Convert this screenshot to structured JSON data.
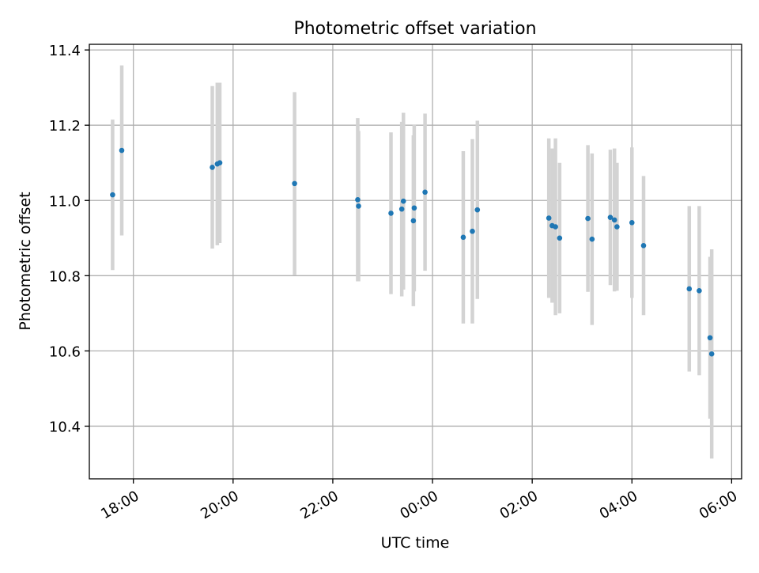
{
  "chart_data": {
    "type": "scatter",
    "title": "Photometric offset variation",
    "xlabel": "UTC time",
    "ylabel": "Photometric offset",
    "x_axis": {
      "kind": "time",
      "range": [
        "2000-01-01T17:07",
        "2000-01-02T06:12"
      ],
      "ticks": [
        {
          "value": "2000-01-01T18:00",
          "label": "18:00"
        },
        {
          "value": "2000-01-01T20:00",
          "label": "20:00"
        },
        {
          "value": "2000-01-01T22:00",
          "label": "22:00"
        },
        {
          "value": "2000-01-02T00:00",
          "label": "00:00"
        },
        {
          "value": "2000-01-02T02:00",
          "label": "02:00"
        },
        {
          "value": "2000-01-02T04:00",
          "label": "04:00"
        },
        {
          "value": "2000-01-02T06:00",
          "label": "06:00"
        }
      ]
    },
    "ylim": [
      10.26,
      11.415
    ],
    "y_ticks": [
      {
        "value": 10.4,
        "label": "10.4"
      },
      {
        "value": 10.6,
        "label": "10.6"
      },
      {
        "value": 10.8,
        "label": "10.8"
      },
      {
        "value": 11.0,
        "label": "11.0"
      },
      {
        "value": 11.2,
        "label": "11.2"
      },
      {
        "value": 11.4,
        "label": "11.4"
      }
    ],
    "grid": true,
    "legend": "none",
    "colors": {
      "point": "#1f77b4",
      "errorbar": "#d3d3d3",
      "grid": "#b0b0b0",
      "axis": "#000000"
    },
    "series": [
      {
        "points": [
          {
            "x": "2000-01-01T17:35",
            "y": 11.015,
            "err": 0.2
          },
          {
            "x": "2000-01-01T17:46",
            "y": 11.133,
            "err": 0.226
          },
          {
            "x": "2000-01-01T19:35",
            "y": 11.088,
            "err": 0.216
          },
          {
            "x": "2000-01-01T19:41",
            "y": 11.097,
            "err": 0.216
          },
          {
            "x": "2000-01-01T19:44",
            "y": 11.1,
            "err": 0.213
          },
          {
            "x": "2000-01-01T21:14",
            "y": 11.045,
            "err": 0.243
          },
          {
            "x": "2000-01-01T22:30",
            "y": 11.002,
            "err": 0.217
          },
          {
            "x": "2000-01-01T22:31",
            "y": 10.985,
            "err": 0.2
          },
          {
            "x": "2000-01-01T23:10",
            "y": 10.966,
            "err": 0.215
          },
          {
            "x": "2000-01-01T23:23",
            "y": 10.977,
            "err": 0.232
          },
          {
            "x": "2000-01-01T23:25",
            "y": 10.998,
            "err": 0.235
          },
          {
            "x": "2000-01-01T23:37",
            "y": 10.946,
            "err": 0.227
          },
          {
            "x": "2000-01-01T23:38",
            "y": 10.98,
            "err": 0.222
          },
          {
            "x": "2000-01-01T23:51",
            "y": 11.022,
            "err": 0.209
          },
          {
            "x": "2000-01-02T00:37",
            "y": 10.902,
            "err": 0.229
          },
          {
            "x": "2000-01-02T00:48",
            "y": 10.918,
            "err": 0.245
          },
          {
            "x": "2000-01-02T00:54",
            "y": 10.975,
            "err": 0.237
          },
          {
            "x": "2000-01-02T02:20",
            "y": 10.953,
            "err": 0.212
          },
          {
            "x": "2000-01-02T02:24",
            "y": 10.933,
            "err": 0.205
          },
          {
            "x": "2000-01-02T02:28",
            "y": 10.93,
            "err": 0.235
          },
          {
            "x": "2000-01-02T02:33",
            "y": 10.9,
            "err": 0.2
          },
          {
            "x": "2000-01-02T03:07",
            "y": 10.952,
            "err": 0.195
          },
          {
            "x": "2000-01-02T03:12",
            "y": 10.897,
            "err": 0.228
          },
          {
            "x": "2000-01-02T03:34",
            "y": 10.955,
            "err": 0.18
          },
          {
            "x": "2000-01-02T03:39",
            "y": 10.948,
            "err": 0.19
          },
          {
            "x": "2000-01-02T03:42",
            "y": 10.93,
            "err": 0.17
          },
          {
            "x": "2000-01-02T04:00",
            "y": 10.941,
            "err": 0.2
          },
          {
            "x": "2000-01-02T04:14",
            "y": 10.88,
            "err": 0.185
          },
          {
            "x": "2000-01-02T05:09",
            "y": 10.765,
            "err": 0.22
          },
          {
            "x": "2000-01-02T05:21",
            "y": 10.76,
            "err": 0.225
          },
          {
            "x": "2000-01-02T05:34",
            "y": 10.635,
            "err": 0.215
          },
          {
            "x": "2000-01-02T05:36",
            "y": 10.592,
            "err": 0.278
          }
        ]
      }
    ]
  }
}
